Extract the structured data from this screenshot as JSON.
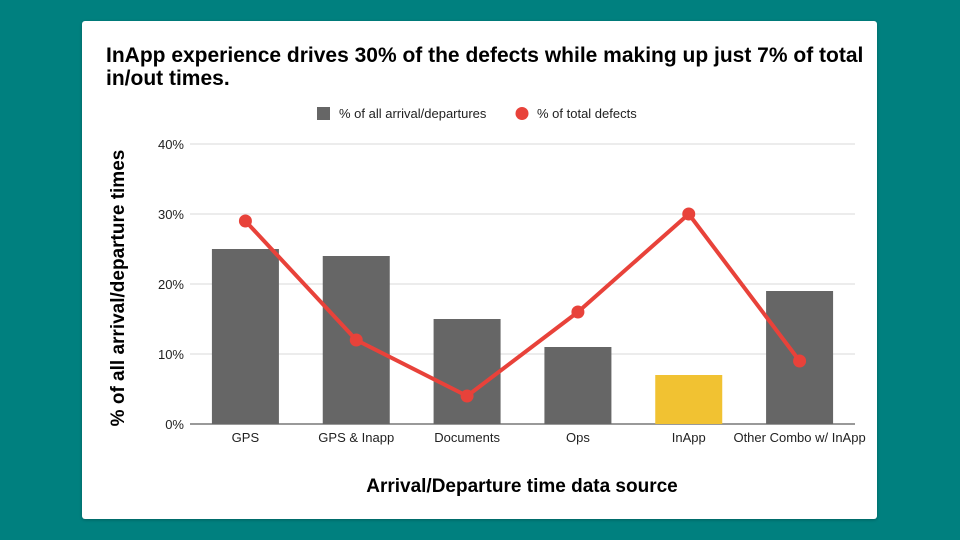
{
  "chart_data": {
    "type": "bar",
    "title": "InApp experience drives 30% of the defects while making up just 7% of total in/out times.",
    "xlabel": "Arrival/Departure time data source",
    "ylabel": "% of all arrival/departure times",
    "categories": [
      "GPS",
      "GPS & Inapp",
      "Documents",
      "Ops",
      "InApp",
      "Other Combo w/ InApp"
    ],
    "ylim": [
      0,
      40
    ],
    "yticks": [
      "0%",
      "10%",
      "20%",
      "30%",
      "40%"
    ],
    "grid": true,
    "legend_position": "top",
    "series": [
      {
        "name": "% of all arrival/departures",
        "type": "bar",
        "values": [
          25,
          24,
          15,
          11,
          7,
          19
        ],
        "color": "#666666",
        "highlight_color": "#f1c232",
        "highlight_index": 4
      },
      {
        "name": "% of total defects",
        "type": "line",
        "values": [
          29,
          12,
          4,
          16,
          30,
          9
        ],
        "color": "#e8423a"
      }
    ]
  },
  "colors": {
    "background": "#00807f",
    "card": "#ffffff",
    "grid": "#d9d9d9"
  }
}
